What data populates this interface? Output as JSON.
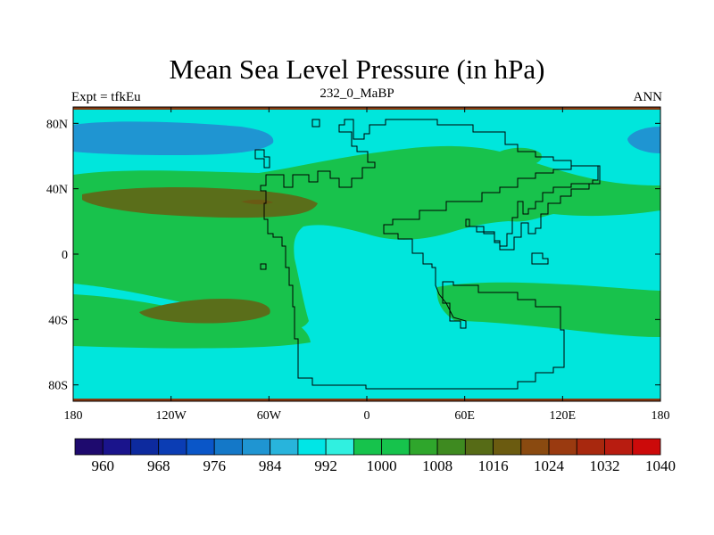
{
  "title": "Mean Sea Level Pressure (in hPa)",
  "left_subtitle": "Expt = tfkEu",
  "center_subtitle": "232_0_MaBP",
  "right_subtitle": "ANN",
  "chart_data": {
    "type": "heatmap",
    "projection": "cylindrical-equidistant",
    "variable": "Mean Sea Level Pressure",
    "units": "hPa",
    "x_ticks": [
      "180",
      "120W",
      "60W",
      "0",
      "60E",
      "120E",
      "180"
    ],
    "y_ticks": [
      "80N",
      "40N",
      "0",
      "40S",
      "80S"
    ],
    "xlim": [
      -180,
      180
    ],
    "ylim": [
      -90,
      90
    ],
    "colorbar": {
      "labels": [
        "960",
        "968",
        "976",
        "984",
        "992",
        "1000",
        "1008",
        "1016",
        "1024",
        "1032",
        "1040"
      ],
      "colors": [
        "#1e0a6e",
        "#1a148c",
        "#0d2a9e",
        "#0b3db4",
        "#0a56c8",
        "#1478c8",
        "#1f95d2",
        "#28b4dc",
        "#00e6e6",
        "#30f0e0",
        "#16c34c",
        "#16c34c",
        "#2fa62c",
        "#3e8a20",
        "#566b16",
        "#6b5b10",
        "#8a4a10",
        "#9a3a10",
        "#a8280e",
        "#b81c10",
        "#cc0a0a"
      ]
    },
    "field_levels": {
      "background": "1000-1008",
      "low_pressure_cells": "992-1000",
      "subtropical_highs": "1016-1024"
    }
  }
}
